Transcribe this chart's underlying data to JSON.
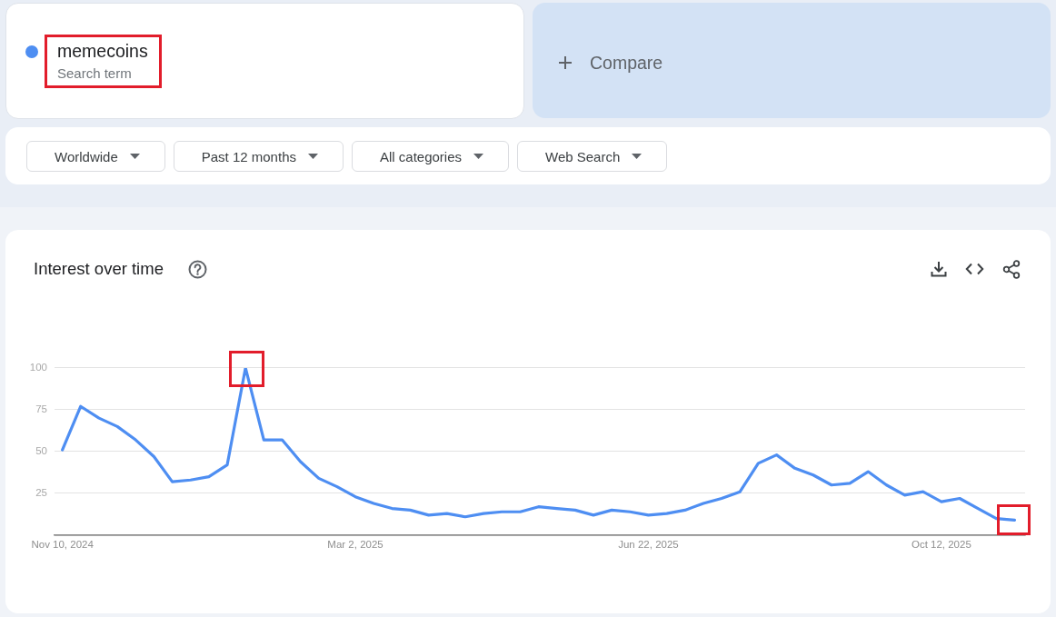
{
  "chart_data": {
    "type": "line",
    "title": "Interest over time",
    "annotations": [
      "Search term",
      "Compare",
      "Worldwide",
      "Past 12 months",
      "All categories",
      "Web Search"
    ],
    "x": [
      "2024-11-10",
      "2024-11-17",
      "2024-11-24",
      "2024-12-01",
      "2024-12-08",
      "2024-12-15",
      "2024-12-22",
      "2024-12-29",
      "2025-01-05",
      "2025-01-12",
      "2025-01-19",
      "2025-01-26",
      "2025-02-02",
      "2025-02-09",
      "2025-02-16",
      "2025-02-23",
      "2025-03-02",
      "2025-03-09",
      "2025-03-16",
      "2025-03-23",
      "2025-03-30",
      "2025-04-06",
      "2025-04-13",
      "2025-04-20",
      "2025-04-27",
      "2025-05-04",
      "2025-05-11",
      "2025-05-18",
      "2025-05-25",
      "2025-06-01",
      "2025-06-08",
      "2025-06-15",
      "2025-06-22",
      "2025-06-29",
      "2025-07-06",
      "2025-07-13",
      "2025-07-20",
      "2025-07-27",
      "2025-08-03",
      "2025-08-10",
      "2025-08-17",
      "2025-08-24",
      "2025-08-31",
      "2025-09-07",
      "2025-09-14",
      "2025-09-21",
      "2025-09-28",
      "2025-10-05",
      "2025-10-12",
      "2025-10-19",
      "2025-10-26",
      "2025-11-02",
      "2025-11-09"
    ],
    "series": [
      {
        "name": "memecoins",
        "color": "#4e8ef2",
        "values": [
          51,
          77,
          70,
          65,
          57,
          47,
          32,
          33,
          35,
          42,
          100,
          57,
          57,
          44,
          34,
          29,
          23,
          19,
          16,
          15,
          12,
          13,
          11,
          13,
          14,
          14,
          17,
          16,
          15,
          12,
          15,
          14,
          12,
          13,
          15,
          19,
          22,
          26,
          43,
          48,
          40,
          36,
          30,
          31,
          38,
          30,
          24,
          26,
          20,
          22,
          16,
          10,
          9
        ]
      }
    ],
    "xlim": [
      "2024-11-07",
      "2025-11-13"
    ],
    "xticks": [
      {
        "value": "2024-11-10",
        "label": "Nov 10, 2024"
      },
      {
        "value": "2025-03-02",
        "label": "Mar 2, 2025"
      },
      {
        "value": "2025-06-22",
        "label": "Jun 22, 2025"
      },
      {
        "value": "2025-10-12",
        "label": "Oct 12, 2025"
      }
    ],
    "ylim": [
      0,
      100
    ],
    "yticks": [
      {
        "value": 0,
        "label": null
      },
      25,
      50,
      75,
      100
    ],
    "grid": "y",
    "legend": "top left",
    "marker": "none",
    "line_style": "solid"
  }
}
